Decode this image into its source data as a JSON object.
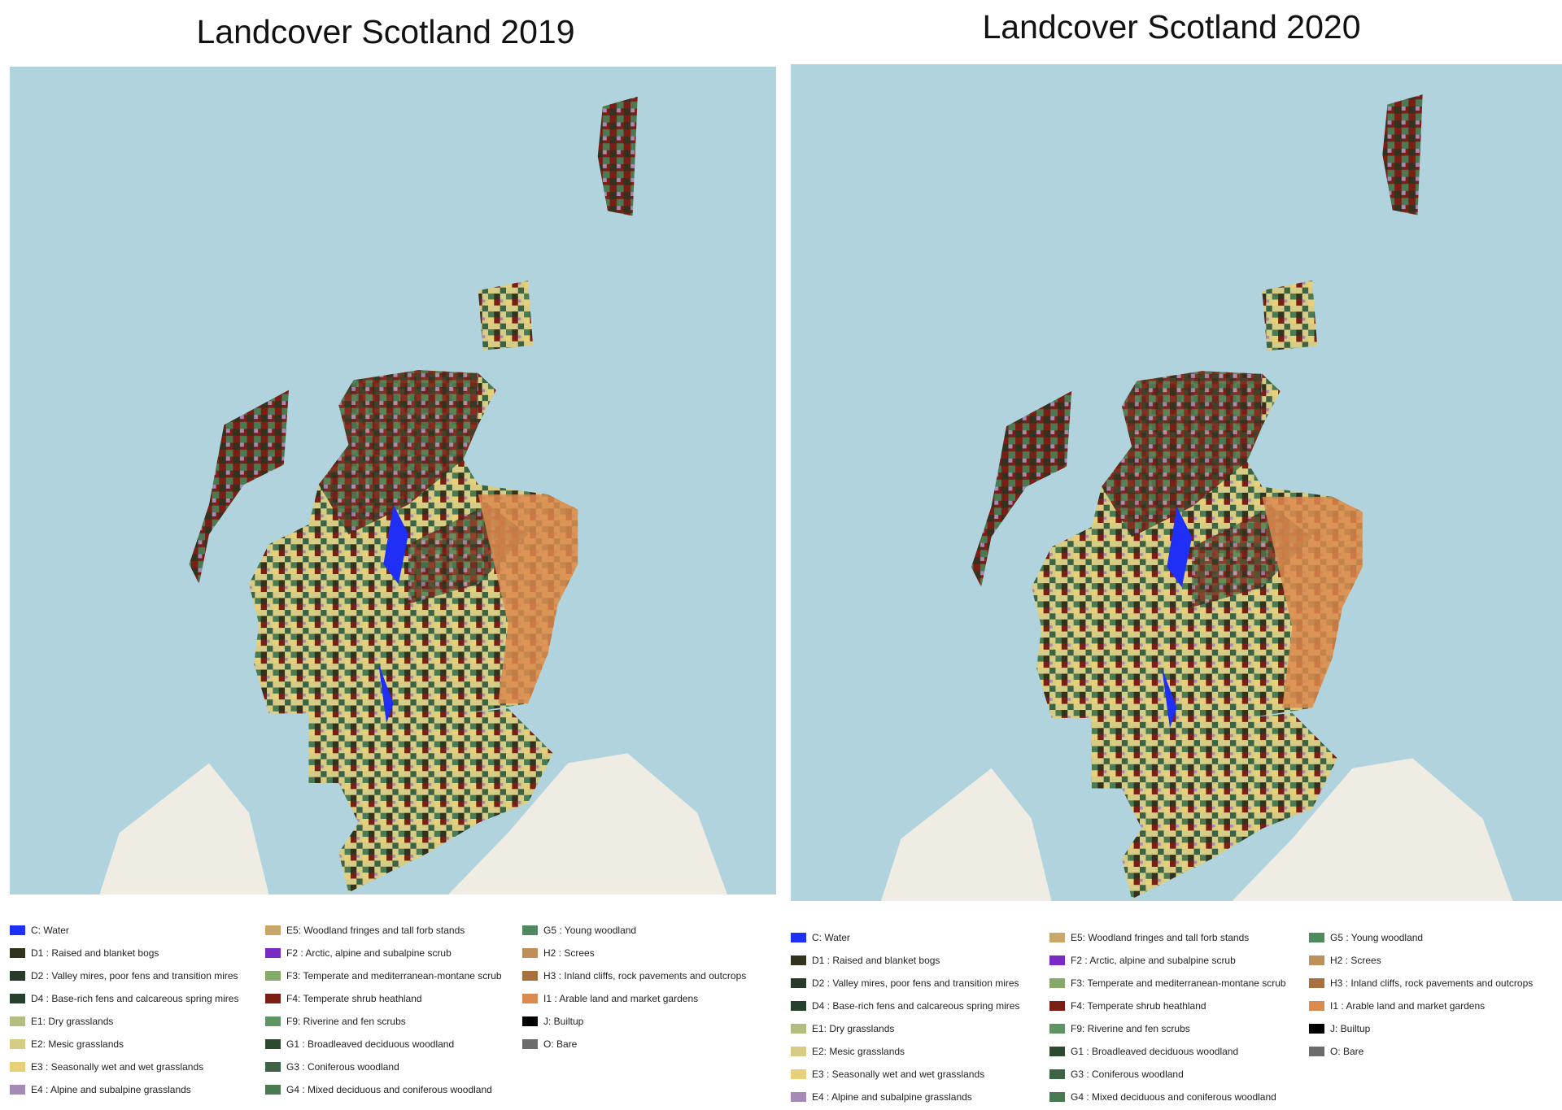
{
  "panels": [
    {
      "title": "Landcover Scotland 2019",
      "legend": [
        {
          "label": "C: Water",
          "color": "#1f2ff5"
        },
        {
          "label": "D1 : Raised and blanket bogs",
          "color": "#33321f"
        },
        {
          "label": "D2 : Valley mires, poor fens and transition mires",
          "color": "#2a3a2a"
        },
        {
          "label": "D4 : Base-rich fens and calcareous spring mires",
          "color": "#25402c"
        },
        {
          "label": "E1: Dry grasslands",
          "color": "#b3bd80"
        },
        {
          "label": "E2: Mesic grasslands",
          "color": "#d6cc85"
        },
        {
          "label": "E3 : Seasonally wet and wet grasslands",
          "color": "#e6d07a"
        },
        {
          "label": "E4 : Alpine and subalpine grasslands",
          "color": "#a48bb5"
        },
        {
          "label": "E5: Woodland fringes and tall forb stands",
          "color": "#c9a76a"
        },
        {
          "label": "F2 : Arctic, alpine and subalpine scrub",
          "color": "#7a2ac4"
        },
        {
          "label": "F3: Temperate and mediterranean-montane scrub",
          "color": "#86a86b"
        },
        {
          "label": "F4: Temperate shrub heathland",
          "color": "#7a1e16"
        },
        {
          "label": "F9: Riverine and fen scrubs",
          "color": "#5e9466"
        },
        {
          "label": "G1 : Broadleaved deciduous woodland",
          "color": "#2d4a31"
        },
        {
          "label": "G3 : Coniferous woodland",
          "color": "#3c6444"
        },
        {
          "label": "G4 : Mixed deciduous and coniferous woodland",
          "color": "#4b7a52"
        },
        {
          "label": "G5 : Young woodland",
          "color": "#4f8a5e"
        },
        {
          "label": "H2 : Screes",
          "color": "#bf8f5a"
        },
        {
          "label": "H3 : Inland cliffs, rock pavements and outcrops",
          "color": "#a8703e"
        },
        {
          "label": "I1 : Arable land and market gardens",
          "color": "#db8a4e"
        },
        {
          "label": "J: Builtup",
          "color": "#000000"
        },
        {
          "label": "O: Bare",
          "color": "#6b6b6b"
        }
      ]
    },
    {
      "title": "Landcover Scotland 2020",
      "legend": [
        {
          "label": "C: Water",
          "color": "#1f2ff5"
        },
        {
          "label": "D1 : Raised and blanket bogs",
          "color": "#33321f"
        },
        {
          "label": "D2 : Valley mires, poor fens and transition mires",
          "color": "#2a3a2a"
        },
        {
          "label": "D4 : Base-rich fens and calcareous spring mires",
          "color": "#25402c"
        },
        {
          "label": "E1: Dry grasslands",
          "color": "#b3bd80"
        },
        {
          "label": "E2: Mesic grasslands",
          "color": "#d6cc85"
        },
        {
          "label": "E3 : Seasonally wet and wet grasslands",
          "color": "#e6d07a"
        },
        {
          "label": "E4 : Alpine and subalpine grasslands",
          "color": "#a48bb5"
        },
        {
          "label": "E5: Woodland fringes and tall forb stands",
          "color": "#c9a76a"
        },
        {
          "label": "F2 : Arctic, alpine and subalpine scrub",
          "color": "#7a2ac4"
        },
        {
          "label": "F3: Temperate and mediterranean-montane scrub",
          "color": "#86a86b"
        },
        {
          "label": "F4: Temperate shrub heathland",
          "color": "#7a1e16"
        },
        {
          "label": "F9: Riverine and fen scrubs",
          "color": "#5e9466"
        },
        {
          "label": "G1 : Broadleaved deciduous woodland",
          "color": "#2d4a31"
        },
        {
          "label": "G3 : Coniferous woodland",
          "color": "#3c6444"
        },
        {
          "label": "G4 : Mixed deciduous and coniferous woodland",
          "color": "#4b7a52"
        },
        {
          "label": "G5 : Young woodland",
          "color": "#4f8a5e"
        },
        {
          "label": "H2 : Screes",
          "color": "#bf8f5a"
        },
        {
          "label": "H3 : Inland cliffs, rock pavements and outcrops",
          "color": "#a8703e"
        },
        {
          "label": "I1 : Arable land and market gardens",
          "color": "#db8a4e"
        },
        {
          "label": "J: Builtup",
          "color": "#000000"
        },
        {
          "label": "O: Bare",
          "color": "#6b6b6b"
        }
      ]
    }
  ]
}
